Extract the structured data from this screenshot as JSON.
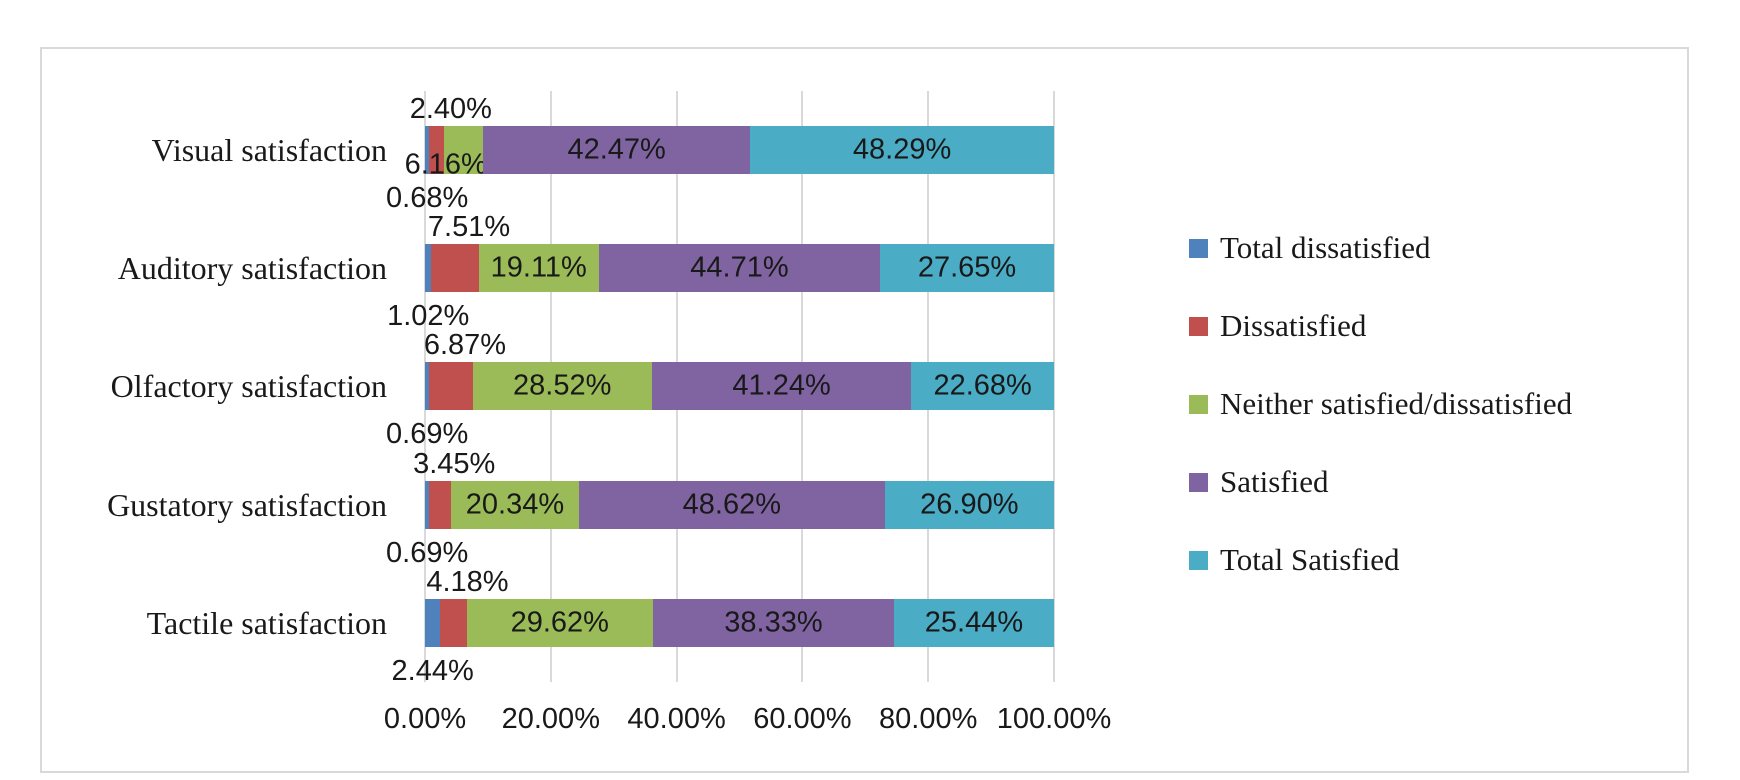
{
  "chart_data": {
    "type": "bar",
    "stacked": true,
    "orientation": "horizontal",
    "title": "",
    "xlabel": "",
    "ylabel": "",
    "xlim": [
      0,
      100
    ],
    "grid": true,
    "legend_position": "right",
    "value_format": "0.00%",
    "categories": [
      "Visual satisfaction",
      "Auditory satisfaction",
      "Olfactory satisfaction",
      "Gustatory satisfaction",
      "Tactile satisfaction"
    ],
    "series": [
      {
        "name": "Total dissatisfied",
        "color": "#4F81BD",
        "values": [
          0.68,
          1.02,
          0.69,
          0.69,
          2.44
        ],
        "labels": [
          "0.68%",
          "1.02%",
          "0.69%",
          "0.69%",
          "2.44%"
        ],
        "label_placement": "below-bar"
      },
      {
        "name": "Dissatisfied",
        "color": "#C0504D",
        "values": [
          2.4,
          7.51,
          6.87,
          3.45,
          4.18
        ],
        "labels": [
          "2.40%",
          "7.51%",
          "6.87%",
          "3.45%",
          "4.18%"
        ],
        "label_placement": "above-bar"
      },
      {
        "name": "Neither satisfied/dissatisfied",
        "color": "#9BBB59",
        "values": [
          6.16,
          19.11,
          28.52,
          20.34,
          29.62
        ],
        "labels": [
          "6.16%",
          "19.11%",
          "28.52%",
          "20.34%",
          "29.62%"
        ],
        "label_placement": "inside"
      },
      {
        "name": "Satisfied",
        "color": "#8064A2",
        "values": [
          42.47,
          44.71,
          41.24,
          48.62,
          38.33
        ],
        "labels": [
          "42.47%",
          "44.71%",
          "41.24%",
          "48.62%",
          "38.33%"
        ],
        "label_placement": "inside"
      },
      {
        "name": "Total Satisfied",
        "color": "#4BACC6",
        "values": [
          48.29,
          27.65,
          22.68,
          26.9,
          25.44
        ],
        "labels": [
          "48.29%",
          "27.65%",
          "22.68%",
          "26.90%",
          "25.44%"
        ],
        "label_placement": "inside"
      }
    ],
    "x_axis": {
      "tick_labels": [
        "0.00%",
        "20.00%",
        "40.00%",
        "60.00%",
        "80.00%",
        "100.00%"
      ],
      "tick_values": [
        0,
        20,
        40,
        60,
        80,
        100
      ]
    },
    "legend": {
      "items": [
        "Total dissatisfied",
        "Dissatisfied",
        "Neither satisfied/dissatisfied",
        "Satisfied",
        "Total Satisfied"
      ]
    }
  },
  "styles": {
    "background": "#ffffff",
    "frame_border": "#d9d9d9",
    "gridline": "#d9d9d9",
    "text": "#191919"
  }
}
